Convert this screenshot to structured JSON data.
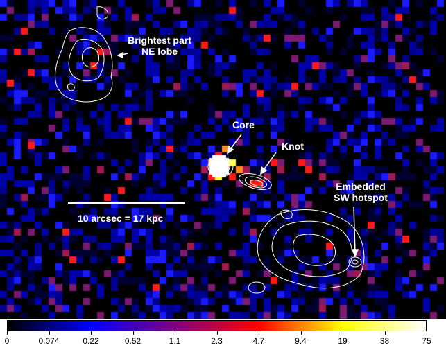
{
  "image": {
    "background": "#000000",
    "pixel_palette": [
      "#000030",
      "#0000a8",
      "#00008c",
      "#1a1aff",
      "#7a1a70",
      "#a01a50",
      "#ff1a1a",
      "#ff8c1a",
      "#ffff40",
      "#ffffff"
    ],
    "contour_color": "#ffffff"
  },
  "annotations": {
    "ne_lobe": [
      "Brightest part",
      "NE lobe"
    ],
    "core": "Core",
    "knot": "Knot",
    "sw_hotspot": [
      "Embedded",
      "SW hotspot"
    ],
    "scale_bar": "10 arcsec = 17 kpc"
  },
  "colorbar": {
    "ticks": [
      "0",
      "0.074",
      "0.22",
      "0.52",
      "1.1",
      "2.3",
      "4.7",
      "9.4",
      "19",
      "38",
      "75"
    ],
    "colors": [
      "#000000",
      "#0000ff",
      "#800080",
      "#ff0000",
      "#ffff00",
      "#ffffff"
    ]
  }
}
